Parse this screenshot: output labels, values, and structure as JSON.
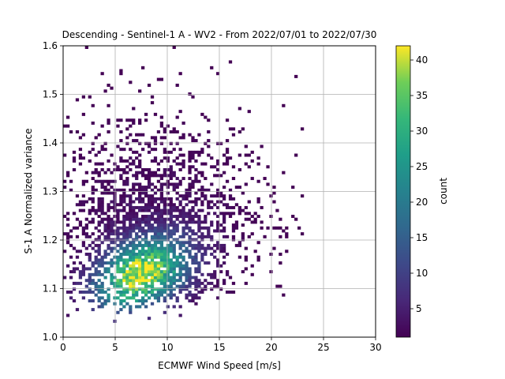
{
  "chart_data": {
    "type": "heatmap",
    "title": "Descending - Sentinel-1 A - WV2 - From 2022/07/01 to 2022/07/30",
    "xlabel": "ECMWF Wind Speed [m/s]",
    "ylabel": "S-1 A Normalized variance",
    "xlim": [
      0,
      30
    ],
    "ylim": [
      1.0,
      1.6
    ],
    "xticks": [
      "0",
      "5",
      "10",
      "15",
      "20",
      "25",
      "30"
    ],
    "yticks": [
      "1.0",
      "1.1",
      "1.2",
      "1.3",
      "1.4",
      "1.5",
      "1.6"
    ],
    "grid": true,
    "colormap": "viridis",
    "colorbar": {
      "label": "count",
      "min": 1,
      "max": 42,
      "ticks": [
        "5",
        "10",
        "15",
        "20",
        "25",
        "30",
        "35",
        "40"
      ]
    },
    "bins": {
      "x_bin_width": 0.3,
      "y_bin_height": 0.006
    },
    "density_peak": {
      "x": 7.5,
      "y": 1.13,
      "count": 42
    },
    "empty_cells": "white (no data)"
  }
}
